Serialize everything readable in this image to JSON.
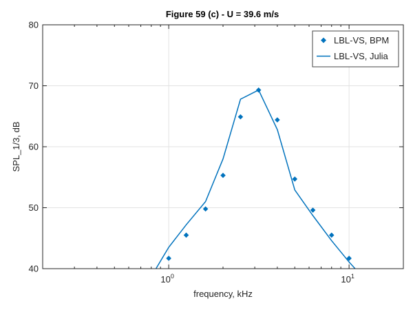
{
  "chart_data": {
    "type": "line",
    "title": "Figure 59 (c) - U = 39.6 m/s",
    "xlabel": "frequency, kHz",
    "ylabel": "SPL_1/3, dB",
    "x_scale": "log",
    "xlim": [
      0.2,
      20
    ],
    "ylim": [
      40,
      80
    ],
    "grid": true,
    "legend_position": "top-right",
    "x_major_ticks": [
      {
        "value": 1,
        "base": "10",
        "exp": "0"
      },
      {
        "value": 10,
        "base": "10",
        "exp": "1"
      }
    ],
    "y_ticks": [
      {
        "value": 40,
        "label": "40"
      },
      {
        "value": 50,
        "label": "50"
      },
      {
        "value": 60,
        "label": "60"
      },
      {
        "value": 70,
        "label": "70"
      },
      {
        "value": 80,
        "label": "80"
      }
    ],
    "series": [
      {
        "name": "LBL-VS, BPM",
        "style": "markers",
        "marker": "diamond",
        "color": "#0072bd",
        "x": [
          1.0,
          1.25,
          1.6,
          2.0,
          2.5,
          3.15,
          4.0,
          5.0,
          6.3,
          8.0,
          10.0
        ],
        "y": [
          41.7,
          45.5,
          49.8,
          55.3,
          64.9,
          69.3,
          64.4,
          54.7,
          49.6,
          45.5,
          41.7
        ]
      },
      {
        "name": "LBL-VS, Julia",
        "style": "line",
        "color": "#0072bd",
        "x": [
          0.85,
          1.0,
          1.25,
          1.6,
          2.0,
          2.5,
          3.15,
          4.0,
          5.0,
          6.3,
          8.0,
          10.0,
          10.8
        ],
        "y": [
          40.0,
          43.5,
          47.2,
          51.0,
          58.0,
          67.8,
          69.3,
          62.8,
          52.9,
          48.7,
          44.6,
          41.1,
          40.0
        ]
      }
    ]
  }
}
